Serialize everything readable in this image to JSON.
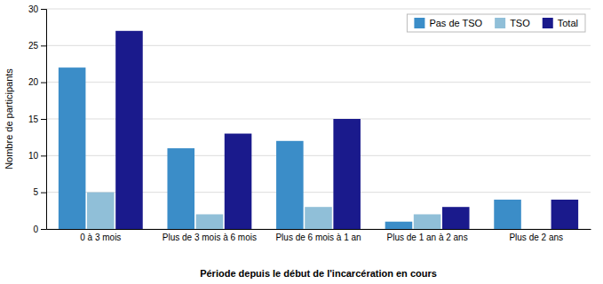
{
  "chart_data": {
    "type": "bar",
    "xlabel": "Période depuis le début de l'incarcération en cours",
    "ylabel": "Nombre de participants",
    "categories": [
      "0 à 3 mois",
      "Plus de 3 mois à 6 mois",
      "Plus de 6 mois à 1 an",
      "Plus de 1 an à 2 ans",
      "Plus de 2 ans"
    ],
    "series": [
      {
        "name": "Pas de TSO",
        "color": "#3B8DC8",
        "values": [
          22,
          11,
          12,
          1,
          4
        ]
      },
      {
        "name": "TSO",
        "color": "#90BFD8",
        "values": [
          5,
          2,
          3,
          2,
          0
        ]
      },
      {
        "name": "Total",
        "color": "#1A1A8C",
        "values": [
          27,
          13,
          15,
          3,
          4
        ]
      }
    ],
    "ylim": [
      0,
      30
    ],
    "yticks": [
      0,
      5,
      10,
      15,
      20,
      25,
      30
    ],
    "grid": true,
    "legend": "upper right"
  }
}
